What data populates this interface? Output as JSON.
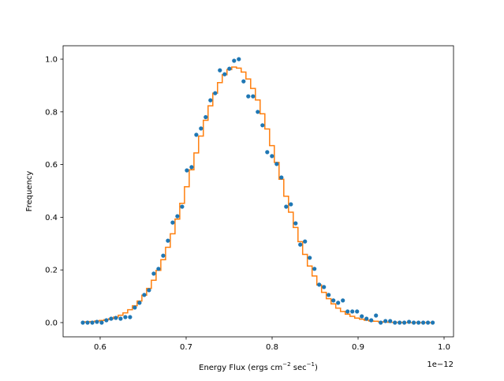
{
  "chart_data": {
    "type": "scatter",
    "xlabel": "Energy Flux (ergs cm",
    "xlabel_sup1": "−2",
    "xlabel_mid": " sec",
    "xlabel_sup2": "−1",
    "xlabel_end": ")",
    "ylabel": "Frequency",
    "x_offset_text": "1e−12",
    "xlim": [
      0.5569,
      1.011
    ],
    "ylim": [
      -0.054,
      1.051
    ],
    "grid": false,
    "x_ticks": [
      0.6,
      0.7,
      0.8,
      0.9,
      1.0
    ],
    "x_tick_labels": [
      "0.6",
      "0.7",
      "0.8",
      "0.9",
      "1.0"
    ],
    "y_ticks": [
      0.0,
      0.2,
      0.4,
      0.6,
      0.8,
      1.0
    ],
    "y_tick_labels": [
      "0.0",
      "0.2",
      "0.4",
      "0.6",
      "0.8",
      "1.0"
    ],
    "x_start": 0.5798,
    "x_step": 0.0055,
    "series": [
      {
        "kind": "scatter",
        "color": "#1f77b4",
        "values": [
          0,
          0,
          0,
          0.003,
          0,
          0.009,
          0.015,
          0.018,
          0.015,
          0.021,
          0.021,
          0.057,
          0.075,
          0.105,
          0.123,
          0.186,
          0.204,
          0.254,
          0.311,
          0.38,
          0.404,
          0.44,
          0.578,
          0.59,
          0.713,
          0.737,
          0.78,
          0.844,
          0.871,
          0.958,
          0.943,
          0.964,
          0.994,
          1.0,
          0.916,
          0.859,
          0.859,
          0.8,
          0.749,
          0.647,
          0.632,
          0.602,
          0.551,
          0.44,
          0.449,
          0.377,
          0.296,
          0.308,
          0.246,
          0.204,
          0.144,
          0.135,
          0.105,
          0.084,
          0.075,
          0.084,
          0.042,
          0.042,
          0.042,
          0.024,
          0.015,
          0.009,
          0.027,
          0,
          0.006,
          0.006,
          0,
          0,
          0,
          0.003,
          0,
          0,
          0,
          0,
          0
        ]
      },
      {
        "kind": "step",
        "color": "#ff7f0e",
        "values": [
          0.002,
          0.003,
          0.004,
          0.006,
          0.008,
          0.011,
          0.015,
          0.021,
          0.028,
          0.037,
          0.049,
          0.064,
          0.082,
          0.104,
          0.13,
          0.161,
          0.198,
          0.239,
          0.286,
          0.337,
          0.393,
          0.453,
          0.516,
          0.58,
          0.644,
          0.708,
          0.768,
          0.823,
          0.871,
          0.911,
          0.941,
          0.961,
          0.97,
          0.966,
          0.951,
          0.925,
          0.889,
          0.845,
          0.793,
          0.735,
          0.672,
          0.608,
          0.544,
          0.48,
          0.419,
          0.361,
          0.307,
          0.259,
          0.215,
          0.177,
          0.143,
          0.115,
          0.091,
          0.071,
          0.055,
          0.042,
          0.032,
          0.024,
          0.017,
          0.013,
          0.009,
          0.006,
          0.005,
          0.003,
          0.002,
          0.001,
          0.001,
          0.001,
          0,
          0,
          0,
          0,
          0,
          0,
          0
        ]
      }
    ]
  }
}
